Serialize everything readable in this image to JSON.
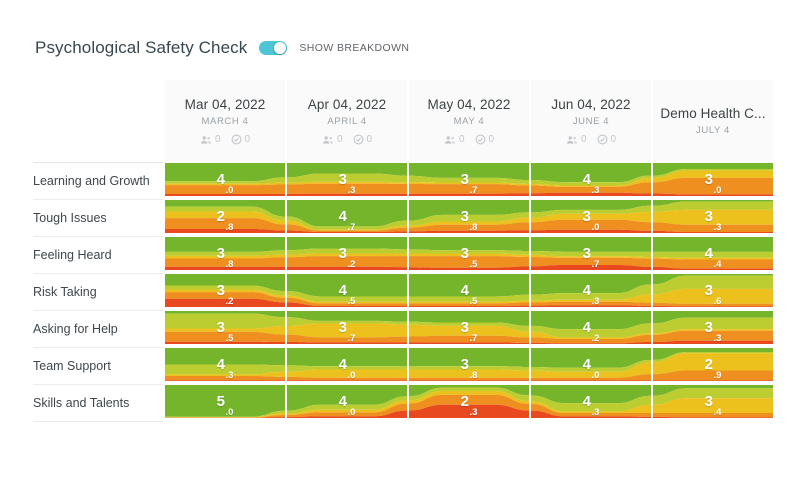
{
  "header": {
    "title": "Psychological Safety Check",
    "toggle_label": "SHOW BREAKDOWN",
    "toggle_on": true
  },
  "colors": {
    "accent_toggle": "#4ec4d5",
    "bands": [
      "#75b52b",
      "#bccd31",
      "#ecc11e",
      "#ee8f1f",
      "#e8491f"
    ]
  },
  "columns": [
    {
      "title": "Mar 04, 2022",
      "subtitle": "MARCH 4",
      "participants": "0",
      "responses": "0"
    },
    {
      "title": "Apr 04, 2022",
      "subtitle": "APRIL 4",
      "participants": "0",
      "responses": "0"
    },
    {
      "title": "May 04, 2022",
      "subtitle": "MAY 4",
      "participants": "0",
      "responses": "0"
    },
    {
      "title": "Jun 04, 2022",
      "subtitle": "JUNE 4",
      "participants": "0",
      "responses": "0"
    },
    {
      "title": "Demo Health C...",
      "subtitle": "JULY 4"
    }
  ],
  "rows": [
    {
      "label": "Learning and Growth",
      "cells": [
        {
          "score": "4.0",
          "bands": [
            0.55,
            0.08,
            0.04,
            0.27,
            0.06
          ]
        },
        {
          "score": "3.3",
          "bands": [
            0.32,
            0.25,
            0.06,
            0.3,
            0.07
          ]
        },
        {
          "score": "3.7",
          "bands": [
            0.45,
            0.14,
            0.05,
            0.29,
            0.07
          ]
        },
        {
          "score": "4.3",
          "bands": [
            0.58,
            0.1,
            0.04,
            0.18,
            0.1
          ]
        },
        {
          "score": "3.0",
          "bands": [
            0.18,
            0.05,
            0.22,
            0.5,
            0.05
          ]
        }
      ]
    },
    {
      "label": "Tough Issues",
      "cells": [
        {
          "score": "2.8",
          "bands": [
            0.2,
            0.15,
            0.2,
            0.33,
            0.12
          ]
        },
        {
          "score": "4.7",
          "bands": [
            0.8,
            0.1,
            0.03,
            0.04,
            0.03
          ]
        },
        {
          "score": "3.8",
          "bands": [
            0.45,
            0.2,
            0.1,
            0.18,
            0.07
          ]
        },
        {
          "score": "3.0",
          "bands": [
            0.3,
            0.12,
            0.18,
            0.3,
            0.1
          ]
        },
        {
          "score": "3.3",
          "bands": [
            0.05,
            0.25,
            0.45,
            0.22,
            0.03
          ]
        }
      ]
    },
    {
      "label": "Feeling Heard",
      "cells": [
        {
          "score": "3.8",
          "bands": [
            0.45,
            0.12,
            0.08,
            0.25,
            0.1
          ]
        },
        {
          "score": "3.2",
          "bands": [
            0.35,
            0.15,
            0.08,
            0.32,
            0.1
          ]
        },
        {
          "score": "3.5",
          "bands": [
            0.4,
            0.1,
            0.08,
            0.35,
            0.07
          ]
        },
        {
          "score": "3.7",
          "bands": [
            0.45,
            0.13,
            0.05,
            0.22,
            0.15
          ]
        },
        {
          "score": "4.4",
          "bands": [
            0.45,
            0.18,
            0.05,
            0.28,
            0.04
          ]
        }
      ]
    },
    {
      "label": "Risk Taking",
      "cells": [
        {
          "score": "3.2",
          "bands": [
            0.35,
            0.12,
            0.08,
            0.2,
            0.25
          ]
        },
        {
          "score": "4.5",
          "bands": [
            0.68,
            0.16,
            0.05,
            0.08,
            0.03
          ]
        },
        {
          "score": "4.5",
          "bands": [
            0.68,
            0.16,
            0.05,
            0.08,
            0.03
          ]
        },
        {
          "score": "4.3",
          "bands": [
            0.58,
            0.2,
            0.06,
            0.11,
            0.05
          ]
        },
        {
          "score": "3.6",
          "bands": [
            0.05,
            0.4,
            0.45,
            0.08,
            0.02
          ]
        }
      ]
    },
    {
      "label": "Asking for Help",
      "cells": [
        {
          "score": "3.5",
          "bands": [
            0.08,
            0.45,
            0.1,
            0.3,
            0.07
          ]
        },
        {
          "score": "3.7",
          "bands": [
            0.3,
            0.08,
            0.42,
            0.15,
            0.05
          ]
        },
        {
          "score": "3.7",
          "bands": [
            0.35,
            0.1,
            0.3,
            0.2,
            0.05
          ]
        },
        {
          "score": "4.2",
          "bands": [
            0.55,
            0.25,
            0.05,
            0.13,
            0.02
          ]
        },
        {
          "score": "3.3",
          "bands": [
            0.2,
            0.35,
            0.05,
            0.3,
            0.1
          ]
        }
      ]
    },
    {
      "label": "Team Support",
      "cells": [
        {
          "score": "4.3",
          "bands": [
            0.5,
            0.3,
            0.05,
            0.13,
            0.02
          ]
        },
        {
          "score": "4.0",
          "bands": [
            0.55,
            0.1,
            0.25,
            0.08,
            0.02
          ]
        },
        {
          "score": "3.8",
          "bands": [
            0.55,
            0.1,
            0.25,
            0.08,
            0.02
          ]
        },
        {
          "score": "4.0",
          "bands": [
            0.6,
            0.12,
            0.18,
            0.08,
            0.02
          ]
        },
        {
          "score": "2.9",
          "bands": [
            0.12,
            0.04,
            0.52,
            0.3,
            0.02
          ]
        }
      ]
    },
    {
      "label": "Skills and Talents",
      "cells": [
        {
          "score": "5.0",
          "bands": [
            0.96,
            0.02,
            0.01,
            0.005,
            0.005
          ]
        },
        {
          "score": "4.0",
          "bands": [
            0.6,
            0.15,
            0.08,
            0.12,
            0.05
          ]
        },
        {
          "score": "2.3",
          "bands": [
            0.08,
            0.1,
            0.12,
            0.3,
            0.4
          ]
        },
        {
          "score": "4.3",
          "bands": [
            0.55,
            0.25,
            0.05,
            0.1,
            0.05
          ]
        },
        {
          "score": "3.4",
          "bands": [
            0.1,
            0.3,
            0.45,
            0.13,
            0.02
          ]
        }
      ]
    }
  ],
  "chart_data": {
    "type": "heatmap",
    "title": "Psychological Safety Check",
    "columns": [
      "Mar 04, 2022",
      "Apr 04, 2022",
      "May 04, 2022",
      "Jun 04, 2022",
      "Demo Health C..."
    ],
    "column_subtitles": [
      "MARCH 4",
      "APRIL 4",
      "MAY 4",
      "JUNE 4",
      "JULY 4"
    ],
    "rows": [
      "Learning and Growth",
      "Tough Issues",
      "Feeling Heard",
      "Risk Taking",
      "Asking for Help",
      "Team Support",
      "Skills and Talents"
    ],
    "values": [
      [
        4.0,
        3.3,
        3.7,
        4.3,
        3.0
      ],
      [
        2.8,
        4.7,
        3.8,
        3.0,
        3.3
      ],
      [
        3.8,
        3.2,
        3.5,
        3.7,
        4.4
      ],
      [
        3.2,
        4.5,
        4.5,
        4.3,
        3.6
      ],
      [
        3.5,
        3.7,
        3.7,
        4.2,
        3.3
      ],
      [
        4.3,
        4.0,
        3.8,
        4.0,
        2.9
      ],
      [
        5.0,
        4.0,
        2.3,
        4.3,
        3.4
      ]
    ],
    "scale": [
      1,
      5
    ],
    "band_scale_colors": {
      "5": "#75b52b",
      "4": "#bccd31",
      "3": "#ecc11e",
      "2": "#ee8f1f",
      "1": "#e8491f"
    },
    "legend": "stream bands per cell show breakdown of ratings 5 (green, top) to 1 (red, bottom)"
  }
}
